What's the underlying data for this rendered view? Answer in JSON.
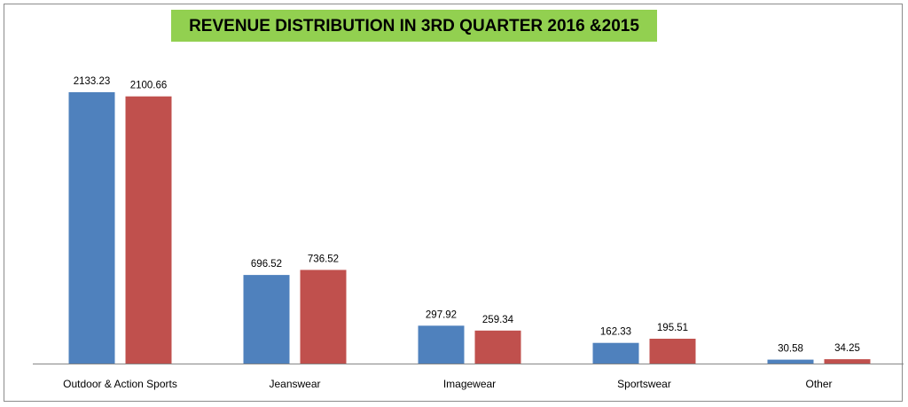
{
  "chart_data": {
    "type": "bar",
    "title": "REVENUE DISTRIBUTION IN 3RD QUARTER 2016 &2015",
    "categories": [
      "Outdoor & Action Sports",
      "Jeanswear",
      "Imagewear",
      "Sportswear",
      "Other"
    ],
    "series": [
      {
        "values": [
          2133.23,
          696.52,
          297.92,
          162.33,
          30.58
        ],
        "color": "#4f81bd"
      },
      {
        "values": [
          2100.66,
          736.52,
          259.34,
          195.51,
          34.25
        ],
        "color": "#c0504d"
      }
    ],
    "data_label_strings": [
      [
        "2133.23",
        "696.52",
        "297.92",
        "162.33",
        "30.58"
      ],
      [
        "2100.66",
        "736.52",
        "259.34",
        "195.51",
        "34.25"
      ]
    ],
    "ylim": [
      0,
      2133.23
    ],
    "xlabel": "",
    "ylabel": "",
    "grid": false,
    "legend": "none",
    "title_background": "#92d050"
  }
}
